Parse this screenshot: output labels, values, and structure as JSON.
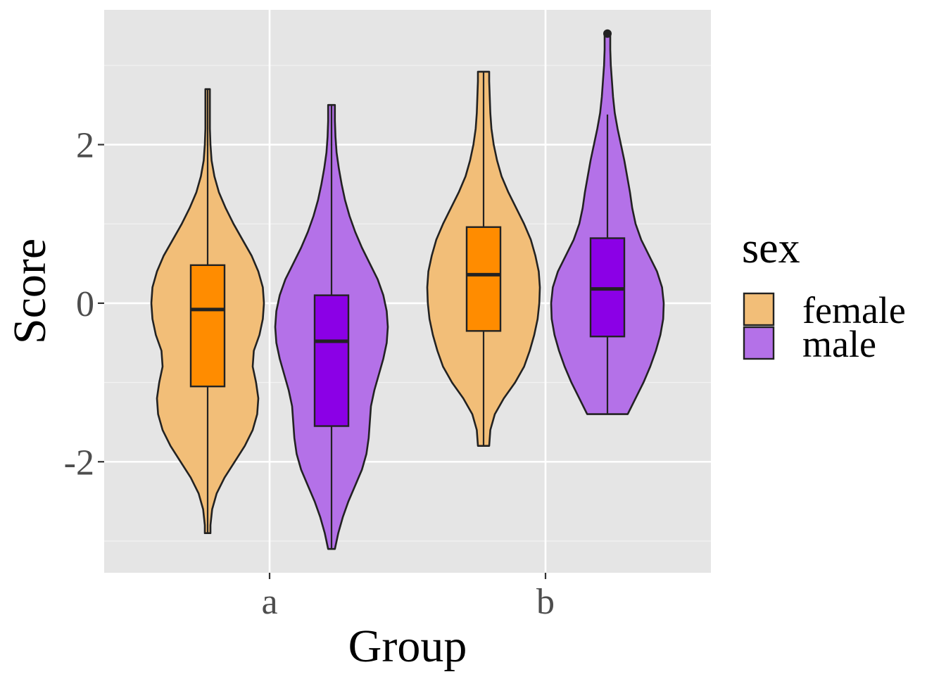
{
  "chart_data": {
    "type": "violin",
    "xlabel": "Group",
    "ylabel": "Score",
    "categories": [
      "a",
      "b"
    ],
    "yticks": [
      -2,
      0,
      2
    ],
    "ytick_labels": [
      "-2",
      "0",
      "2"
    ],
    "ylim": [
      -3.4,
      3.7
    ],
    "grid": true,
    "legend": {
      "title": "sex",
      "position": "right",
      "entries": [
        "female",
        "male"
      ]
    },
    "series": [
      {
        "name": "female",
        "fill_color": "#f2be78",
        "box_color": "#ff8c00",
        "groups": [
          {
            "category": "a",
            "min": -2.9,
            "q1": -1.05,
            "median": -0.08,
            "q3": 0.48,
            "max": 2.7,
            "density": [
              [
                -2.9,
                0.05
              ],
              [
                -2.8,
                0.05
              ],
              [
                -2.6,
                0.08
              ],
              [
                -2.4,
                0.16
              ],
              [
                -2.2,
                0.3
              ],
              [
                -2.0,
                0.48
              ],
              [
                -1.8,
                0.66
              ],
              [
                -1.6,
                0.8
              ],
              [
                -1.4,
                0.88
              ],
              [
                -1.2,
                0.9
              ],
              [
                -1.0,
                0.86
              ],
              [
                -0.8,
                0.8
              ],
              [
                -0.6,
                0.82
              ],
              [
                -0.4,
                0.92
              ],
              [
                -0.2,
                0.98
              ],
              [
                0.0,
                1.0
              ],
              [
                0.2,
                0.98
              ],
              [
                0.4,
                0.9
              ],
              [
                0.6,
                0.78
              ],
              [
                0.8,
                0.62
              ],
              [
                1.0,
                0.46
              ],
              [
                1.2,
                0.32
              ],
              [
                1.4,
                0.2
              ],
              [
                1.6,
                0.12
              ],
              [
                1.8,
                0.07
              ],
              [
                2.0,
                0.05
              ],
              [
                2.2,
                0.04
              ],
              [
                2.4,
                0.04
              ],
              [
                2.6,
                0.04
              ],
              [
                2.7,
                0.04
              ]
            ]
          },
          {
            "category": "b",
            "min": -1.8,
            "q1": -0.35,
            "median": 0.36,
            "q3": 0.96,
            "max": 2.92,
            "density": [
              [
                -1.8,
                0.1
              ],
              [
                -1.6,
                0.12
              ],
              [
                -1.4,
                0.2
              ],
              [
                -1.2,
                0.36
              ],
              [
                -1.0,
                0.56
              ],
              [
                -0.8,
                0.72
              ],
              [
                -0.6,
                0.82
              ],
              [
                -0.4,
                0.9
              ],
              [
                -0.2,
                0.96
              ],
              [
                0.0,
                0.99
              ],
              [
                0.2,
                1.0
              ],
              [
                0.4,
                0.98
              ],
              [
                0.6,
                0.92
              ],
              [
                0.8,
                0.84
              ],
              [
                1.0,
                0.72
              ],
              [
                1.2,
                0.58
              ],
              [
                1.4,
                0.44
              ],
              [
                1.6,
                0.32
              ],
              [
                1.8,
                0.24
              ],
              [
                2.0,
                0.18
              ],
              [
                2.2,
                0.14
              ],
              [
                2.4,
                0.12
              ],
              [
                2.6,
                0.11
              ],
              [
                2.8,
                0.1
              ],
              [
                2.92,
                0.1
              ]
            ]
          }
        ]
      },
      {
        "name": "male",
        "fill_color": "#b471e8",
        "box_color": "#8b00e6",
        "groups": [
          {
            "category": "a",
            "min": -3.1,
            "q1": -1.55,
            "median": -0.48,
            "q3": 0.1,
            "max": 2.5,
            "density": [
              [
                -3.1,
                0.06
              ],
              [
                -2.9,
                0.12
              ],
              [
                -2.7,
                0.2
              ],
              [
                -2.5,
                0.3
              ],
              [
                -2.3,
                0.42
              ],
              [
                -2.1,
                0.54
              ],
              [
                -1.9,
                0.62
              ],
              [
                -1.7,
                0.66
              ],
              [
                -1.5,
                0.68
              ],
              [
                -1.3,
                0.7
              ],
              [
                -1.1,
                0.76
              ],
              [
                -0.9,
                0.84
              ],
              [
                -0.7,
                0.92
              ],
              [
                -0.5,
                0.98
              ],
              [
                -0.3,
                1.0
              ],
              [
                -0.1,
                0.98
              ],
              [
                0.1,
                0.92
              ],
              [
                0.3,
                0.82
              ],
              [
                0.5,
                0.68
              ],
              [
                0.7,
                0.54
              ],
              [
                0.9,
                0.42
              ],
              [
                1.1,
                0.32
              ],
              [
                1.3,
                0.24
              ],
              [
                1.5,
                0.18
              ],
              [
                1.7,
                0.13
              ],
              [
                1.9,
                0.09
              ],
              [
                2.1,
                0.07
              ],
              [
                2.3,
                0.06
              ],
              [
                2.5,
                0.06
              ]
            ]
          },
          {
            "category": "b",
            "min": -1.4,
            "q1": -0.42,
            "median": 0.18,
            "q3": 0.82,
            "max": 2.38,
            "outliers": [
              3.4
            ],
            "density": [
              [
                -1.4,
                0.36
              ],
              [
                -1.2,
                0.5
              ],
              [
                -1.0,
                0.64
              ],
              [
                -0.8,
                0.76
              ],
              [
                -0.6,
                0.86
              ],
              [
                -0.4,
                0.94
              ],
              [
                -0.2,
                0.99
              ],
              [
                0.0,
                1.0
              ],
              [
                0.2,
                0.97
              ],
              [
                0.4,
                0.88
              ],
              [
                0.6,
                0.74
              ],
              [
                0.8,
                0.6
              ],
              [
                1.0,
                0.5
              ],
              [
                1.2,
                0.44
              ],
              [
                1.4,
                0.4
              ],
              [
                1.6,
                0.35
              ],
              [
                1.8,
                0.3
              ],
              [
                2.0,
                0.24
              ],
              [
                2.2,
                0.18
              ],
              [
                2.4,
                0.13
              ],
              [
                2.6,
                0.1
              ],
              [
                2.8,
                0.08
              ],
              [
                3.0,
                0.06
              ],
              [
                3.2,
                0.05
              ],
              [
                3.4,
                0.05
              ]
            ]
          }
        ]
      }
    ]
  }
}
